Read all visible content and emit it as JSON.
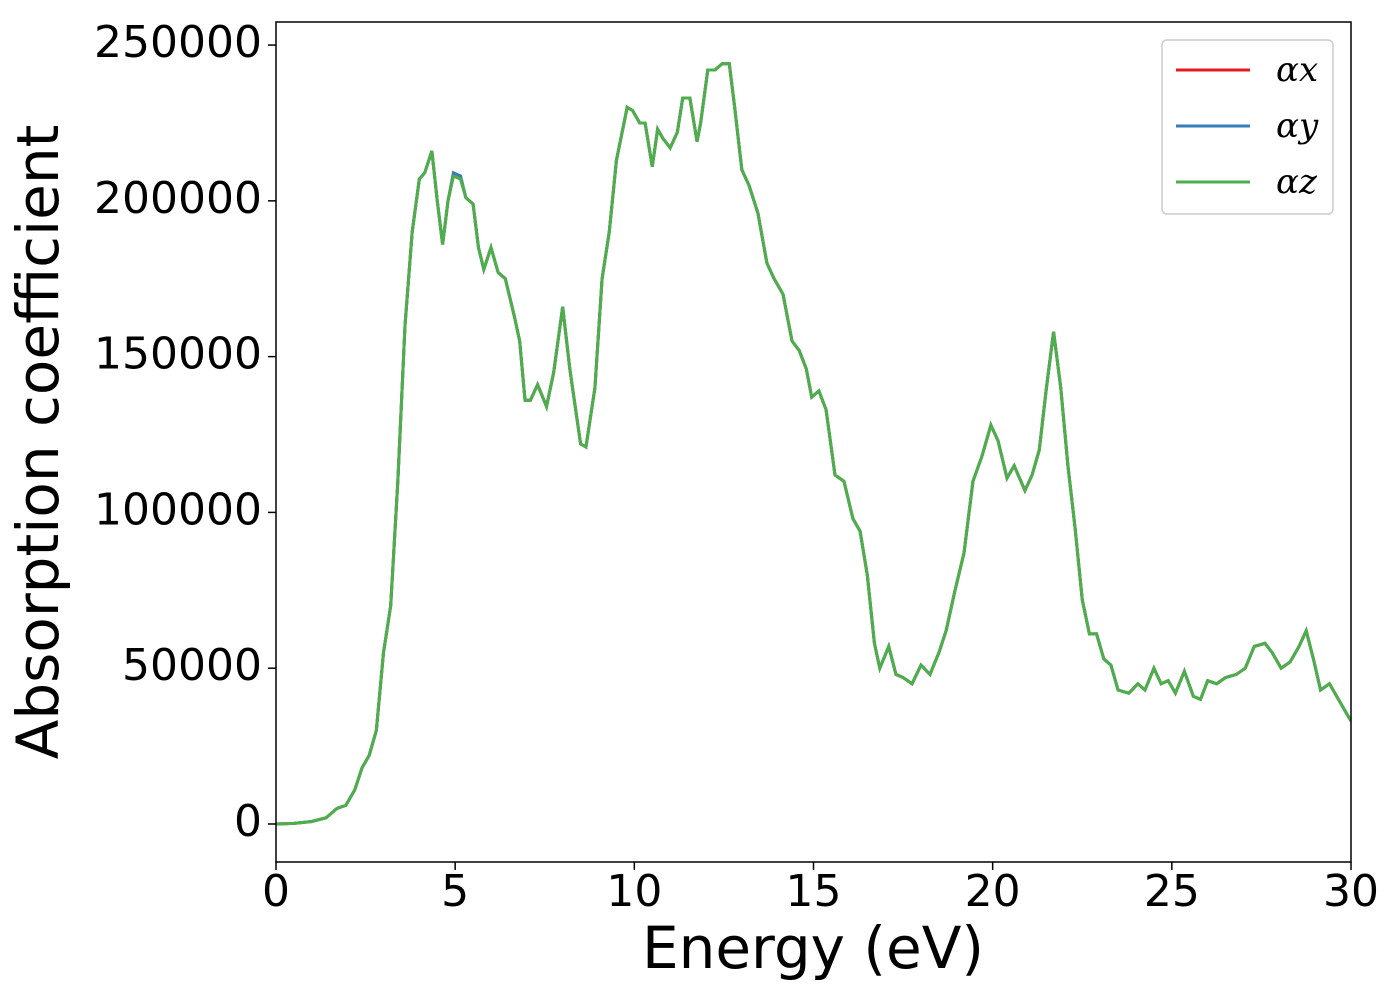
{
  "chart_data": {
    "type": "line",
    "xlabel": "Energy (eV)",
    "ylabel": "Absorption coefficient",
    "x": [
      0,
      0.5,
      1.0,
      1.4,
      1.7,
      1.95,
      2.2,
      2.4,
      2.6,
      2.8,
      3.0,
      3.2,
      3.4,
      3.6,
      3.8,
      4.0,
      4.15,
      4.35,
      4.5,
      4.65,
      4.8,
      4.95,
      5.15,
      5.3,
      5.5,
      5.65,
      5.8,
      6.0,
      6.2,
      6.4,
      6.65,
      6.8,
      6.95,
      7.1,
      7.3,
      7.55,
      7.75,
      8.0,
      8.2,
      8.5,
      8.65,
      8.9,
      9.1,
      9.3,
      9.5,
      9.8,
      9.95,
      10.15,
      10.3,
      10.5,
      10.65,
      10.8,
      11.0,
      11.2,
      11.35,
      11.55,
      11.75,
      11.85,
      12.05,
      12.25,
      12.45,
      12.65,
      12.8,
      13.0,
      13.2,
      13.45,
      13.7,
      13.9,
      14.15,
      14.4,
      14.6,
      14.8,
      14.95,
      15.15,
      15.35,
      15.6,
      15.85,
      16.1,
      16.3,
      16.5,
      16.7,
      16.85,
      17.1,
      17.3,
      17.5,
      17.75,
      18.0,
      18.25,
      18.5,
      18.7,
      18.95,
      19.2,
      19.45,
      19.7,
      19.95,
      20.15,
      20.4,
      20.6,
      20.9,
      21.1,
      21.3,
      21.5,
      21.7,
      21.9,
      22.1,
      22.3,
      22.5,
      22.7,
      22.9,
      23.1,
      23.3,
      23.5,
      23.8,
      24.05,
      24.25,
      24.5,
      24.7,
      24.9,
      25.1,
      25.35,
      25.6,
      25.8,
      26.0,
      26.25,
      26.5,
      26.8,
      27.05,
      27.3,
      27.6,
      27.8,
      28.05,
      28.3,
      28.55,
      28.75,
      28.95,
      29.15,
      29.4,
      29.7,
      30.0
    ],
    "series": [
      {
        "name": "αx",
        "color": "#e41a1c",
        "values": [
          0,
          200,
          800,
          2000,
          5000,
          6000,
          11000,
          18000,
          22000,
          30000,
          55000,
          70000,
          110000,
          160000,
          190000,
          207000,
          209000,
          216000,
          200000,
          186000,
          200000,
          208000,
          207000,
          201000,
          199000,
          185000,
          178000,
          185000,
          177000,
          175000,
          163000,
          155000,
          136000,
          136000,
          141000,
          134000,
          145000,
          166000,
          146000,
          122000,
          121000,
          140000,
          175000,
          190000,
          213000,
          230000,
          229000,
          225000,
          225000,
          211000,
          223000,
          220000,
          217000,
          222000,
          233000,
          233000,
          219000,
          225000,
          242000,
          242000,
          244000,
          244000,
          230000,
          210000,
          205000,
          196000,
          180000,
          175000,
          170000,
          155000,
          152000,
          146000,
          137000,
          139000,
          133000,
          112000,
          110000,
          98000,
          94000,
          80000,
          58000,
          50000,
          57000,
          48000,
          47000,
          45000,
          51000,
          48000,
          55000,
          62000,
          75000,
          87000,
          110000,
          118000,
          128000,
          123000,
          111000,
          115000,
          107000,
          112000,
          120000,
          140000,
          158000,
          140000,
          115000,
          95000,
          72000,
          61000,
          61000,
          53000,
          51000,
          43000,
          42000,
          45000,
          43000,
          50000,
          45000,
          46000,
          42000,
          49000,
          41000,
          40000,
          46000,
          45000,
          47000,
          48000,
          50000,
          57000,
          58000,
          55000,
          50000,
          52000,
          57000,
          62000,
          53000,
          43000,
          45000,
          39000,
          33000
        ]
      },
      {
        "name": "αy",
        "color": "#377eb8",
        "values": [
          0,
          200,
          800,
          2000,
          5000,
          6000,
          11000,
          18000,
          22000,
          30000,
          55000,
          70000,
          110000,
          160000,
          190000,
          207000,
          209000,
          216000,
          200000,
          186000,
          200000,
          209000,
          208000,
          201000,
          199000,
          185000,
          178000,
          185000,
          177000,
          175000,
          163000,
          155000,
          136000,
          136000,
          141000,
          134000,
          145000,
          166000,
          146000,
          122000,
          121000,
          140000,
          175000,
          190000,
          213000,
          230000,
          229000,
          225000,
          225000,
          211000,
          223000,
          220000,
          217000,
          222000,
          233000,
          233000,
          219000,
          225000,
          242000,
          242000,
          244000,
          244000,
          230000,
          210000,
          205000,
          196000,
          180000,
          175000,
          170000,
          155000,
          152000,
          146000,
          137000,
          139000,
          133000,
          112000,
          110000,
          98000,
          94000,
          80000,
          58000,
          50000,
          57000,
          48000,
          47000,
          45000,
          51000,
          48000,
          55000,
          62000,
          75000,
          87000,
          110000,
          118000,
          128000,
          123000,
          111000,
          115000,
          107000,
          112000,
          120000,
          140000,
          158000,
          140000,
          115000,
          95000,
          72000,
          61000,
          61000,
          53000,
          51000,
          43000,
          42000,
          45000,
          43000,
          50000,
          45000,
          46000,
          42000,
          49000,
          41000,
          40000,
          46000,
          45000,
          47000,
          48000,
          50000,
          57000,
          58000,
          55000,
          50000,
          52000,
          57000,
          62000,
          53000,
          43000,
          45000,
          39000,
          33000
        ]
      },
      {
        "name": "αz",
        "color": "#4daf4a",
        "values": [
          0,
          200,
          800,
          2000,
          5000,
          6000,
          11000,
          18000,
          22000,
          30000,
          55000,
          70000,
          110000,
          160000,
          190000,
          207000,
          209000,
          216000,
          200000,
          186000,
          200000,
          208000,
          207000,
          201000,
          199000,
          185000,
          178000,
          185000,
          177000,
          175000,
          163000,
          155000,
          136000,
          136000,
          141000,
          134000,
          145000,
          166000,
          146000,
          122000,
          121000,
          140000,
          175000,
          190000,
          213000,
          230000,
          229000,
          225000,
          225000,
          211000,
          223000,
          220000,
          217000,
          222000,
          233000,
          233000,
          219000,
          225000,
          242000,
          242000,
          244000,
          244000,
          230000,
          210000,
          205000,
          196000,
          180000,
          175000,
          170000,
          155000,
          152000,
          146000,
          137000,
          139000,
          133000,
          112000,
          110000,
          98000,
          94000,
          80000,
          58000,
          50000,
          57000,
          48000,
          47000,
          45000,
          51000,
          48000,
          55000,
          62000,
          75000,
          87000,
          110000,
          118000,
          128000,
          123000,
          111000,
          115000,
          107000,
          112000,
          120000,
          140000,
          158000,
          140000,
          115000,
          95000,
          72000,
          61000,
          61000,
          53000,
          51000,
          43000,
          42000,
          45000,
          43000,
          50000,
          45000,
          46000,
          42000,
          49000,
          41000,
          40000,
          46000,
          45000,
          47000,
          48000,
          50000,
          57000,
          58000,
          55000,
          50000,
          52000,
          57000,
          62000,
          53000,
          43000,
          45000,
          39000,
          33000
        ]
      }
    ],
    "xlim": [
      0,
      30
    ],
    "xticks": [
      0,
      5,
      10,
      15,
      20,
      25,
      30
    ],
    "ylim": [
      -12200,
      257400
    ],
    "yticks": [
      0,
      50000,
      100000,
      150000,
      200000,
      250000
    ],
    "grid": false,
    "legend": "upper right"
  }
}
